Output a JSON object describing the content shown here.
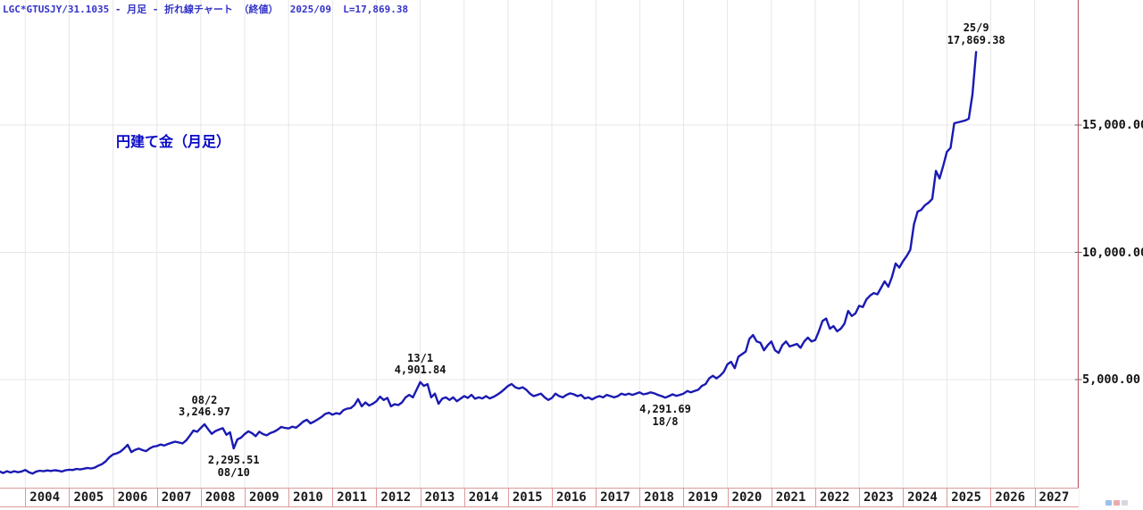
{
  "header": {
    "instrument_line": "LGC*GTUSJY/31.1035 - 月足 - 折れ線チャート （終値）  2025/09  L=17,869.38"
  },
  "chart_title": "円建て金（月足）",
  "colors": {
    "background": "#ffffff",
    "series_line": "#1a1ab2",
    "header_text": "#3232c8",
    "title_text": "#0a0ac8",
    "axis_red": "#c25a64",
    "band_border": "#dc9a9a",
    "gridline": "#e7e7e7",
    "label_text": "#111111"
  },
  "chart_data": {
    "type": "line",
    "title": "円建て金（月足）",
    "subtitle": "LGC*GTUSJY/31.1035 - 月足 - 折れ線チャート （終値）",
    "latest": {
      "date": "2025/09",
      "close": 17869.38
    },
    "grid": true,
    "legend_position": "none",
    "x_axis": {
      "tick_labels": [
        "2004",
        "2005",
        "2006",
        "2007",
        "2008",
        "2009",
        "2010",
        "2011",
        "2012",
        "2013",
        "2014",
        "2015",
        "2016",
        "2017",
        "2018",
        "2019",
        "2020",
        "2021",
        "2022",
        "2023",
        "2024",
        "2025",
        "2026",
        "2027"
      ]
    },
    "y_axis": {
      "tick_labels": [
        "5,000.00",
        "10,000.00",
        "15,000.00"
      ],
      "tick_values": [
        5000,
        10000,
        15000
      ],
      "range": [
        0,
        19900
      ],
      "side": "right"
    },
    "series": [
      {
        "name": "LGC*GTUSJY/31.1035 終値",
        "start_year": 2003,
        "start_month": 6,
        "values": [
          1390,
          1330,
          1400,
          1350,
          1400,
          1360,
          1390,
          1450,
          1360,
          1310,
          1390,
          1420,
          1400,
          1430,
          1410,
          1440,
          1420,
          1390,
          1440,
          1460,
          1450,
          1490,
          1470,
          1500,
          1530,
          1510,
          1540,
          1620,
          1680,
          1790,
          1950,
          2060,
          2100,
          2170,
          2290,
          2440,
          2150,
          2240,
          2290,
          2230,
          2190,
          2290,
          2370,
          2390,
          2450,
          2410,
          2470,
          2520,
          2560,
          2530,
          2490,
          2610,
          2800,
          3000,
          2950,
          3100,
          3246.97,
          3050,
          2870,
          2980,
          3040,
          3090,
          2830,
          2930,
          2295.51,
          2650,
          2720,
          2860,
          2970,
          2900,
          2780,
          2950,
          2860,
          2810,
          2900,
          2950,
          3030,
          3140,
          3100,
          3080,
          3150,
          3110,
          3220,
          3350,
          3420,
          3280,
          3350,
          3440,
          3530,
          3650,
          3700,
          3620,
          3680,
          3650,
          3800,
          3860,
          3880,
          4000,
          4230,
          3950,
          4100,
          3980,
          4050,
          4150,
          4330,
          4200,
          4280,
          3950,
          4030,
          4000,
          4100,
          4300,
          4400,
          4300,
          4600,
          4901.84,
          4750,
          4820,
          4300,
          4450,
          4050,
          4250,
          4300,
          4200,
          4300,
          4150,
          4250,
          4350,
          4280,
          4400,
          4250,
          4300,
          4260,
          4350,
          4260,
          4320,
          4400,
          4500,
          4620,
          4750,
          4825,
          4700,
          4650,
          4700,
          4600,
          4450,
          4350,
          4400,
          4450,
          4300,
          4200,
          4280,
          4450,
          4350,
          4300,
          4400,
          4460,
          4420,
          4350,
          4400,
          4260,
          4300,
          4220,
          4300,
          4350,
          4300,
          4400,
          4350,
          4300,
          4350,
          4450,
          4400,
          4450,
          4400,
          4450,
          4500,
          4420,
          4450,
          4500,
          4460,
          4400,
          4350,
          4291.69,
          4350,
          4420,
          4360,
          4400,
          4450,
          4550,
          4500,
          4550,
          4600,
          4750,
          4820,
          5050,
          5150,
          5050,
          5150,
          5300,
          5600,
          5700,
          5450,
          5900,
          6000,
          6100,
          6600,
          6750,
          6500,
          6450,
          6150,
          6350,
          6500,
          6150,
          6050,
          6350,
          6500,
          6300,
          6350,
          6400,
          6250,
          6500,
          6650,
          6500,
          6550,
          6900,
          7300,
          7400,
          7000,
          7100,
          6900,
          7000,
          7200,
          7700,
          7500,
          7600,
          7900,
          7850,
          8150,
          8300,
          8400,
          8350,
          8600,
          8860,
          8650,
          9035,
          9560,
          9400,
          9650,
          9850,
          10100,
          11100,
          11600,
          11670,
          11850,
          11950,
          12100,
          13200,
          12900,
          13400,
          13950,
          14100,
          15070,
          15105,
          15140,
          15180,
          15250,
          16200,
          17869.38
        ]
      }
    ],
    "annotations": [
      {
        "line1": "08/2",
        "line2": "3,246.97",
        "anchor_year": 2008.083,
        "anchor_value": 3246.97,
        "placement": "above"
      },
      {
        "line1": "2,295.51",
        "line2": "08/10",
        "anchor_year": 2008.75,
        "anchor_value": 2295.51,
        "placement": "below"
      },
      {
        "line1": "13/1",
        "line2": "4,901.84",
        "anchor_year": 2013.0,
        "anchor_value": 4901.84,
        "placement": "above"
      },
      {
        "line1": "4,291.69",
        "line2": "18/8",
        "anchor_year": 2018.583,
        "anchor_value": 4291.69,
        "placement": "below"
      },
      {
        "line1": "25/9",
        "line2": "17,869.38",
        "anchor_year": 2025.667,
        "anchor_value": 17869.38,
        "placement": "above"
      }
    ]
  }
}
